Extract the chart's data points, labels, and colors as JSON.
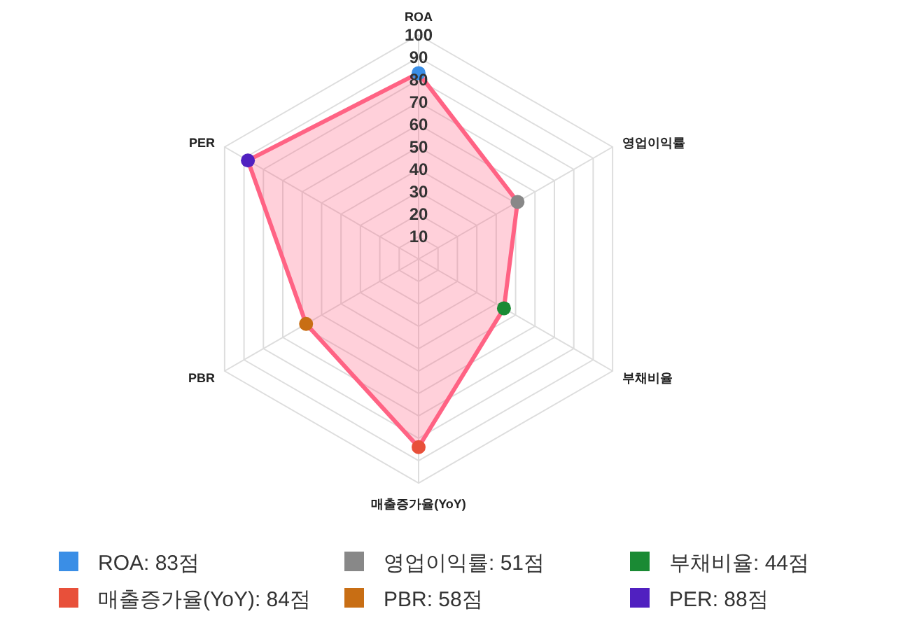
{
  "chart_data": {
    "type": "radar",
    "categories": [
      "ROA",
      "영업이익률",
      "부채비율",
      "매출증가율(YoY)",
      "PBR",
      "PER"
    ],
    "series": [
      {
        "color": "#ff6384",
        "values": [
          83,
          51,
          44,
          84,
          58,
          88
        ],
        "colors": [
          "#3a8ee6",
          "#888888",
          "#1a8a34",
          "#e8503a",
          "#c86e14",
          "#5020c0"
        ]
      }
    ],
    "value_labels": [
      "ROA: 83점",
      "영업이익률: 51점",
      "부채비율: 44점",
      "매출증가율(YoY): 84점",
      "PBR: 58점",
      "PER: 88점"
    ],
    "ylim": [
      0,
      100
    ],
    "yticks": [
      10,
      20,
      30,
      40,
      50,
      60,
      70,
      80,
      90,
      100
    ],
    "grid": true,
    "marker": "circle"
  }
}
